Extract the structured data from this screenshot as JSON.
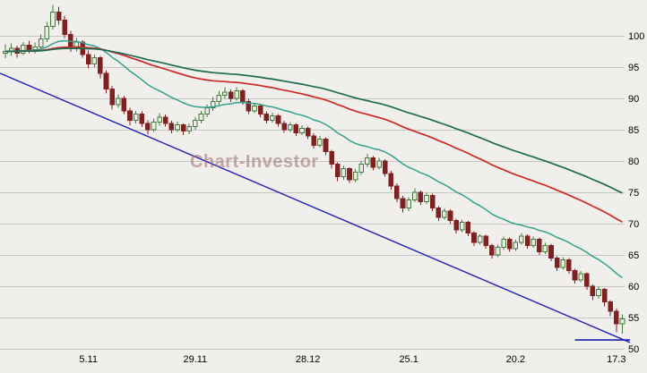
{
  "chart_data": {
    "type": "candlestick",
    "watermark": "Chart-Investor",
    "y_axis": {
      "top_price": 105.7,
      "bottom_price": 49.7,
      "ticks": [
        100,
        95,
        90,
        85,
        80,
        75,
        70,
        65,
        60,
        55,
        50
      ]
    },
    "x_labels": [
      {
        "index": 14,
        "text": "5.11"
      },
      {
        "index": 32,
        "text": "29.11"
      },
      {
        "index": 51,
        "text": "28.12"
      },
      {
        "index": 68,
        "text": "25.1"
      },
      {
        "index": 86,
        "text": "20.2"
      },
      {
        "index": 103,
        "text": "17.3"
      }
    ],
    "candles": [
      [
        97.2,
        98.6,
        96.4,
        97.5
      ],
      [
        97.5,
        98.8,
        96.8,
        98.0
      ],
      [
        98.0,
        98.4,
        96.5,
        97.2
      ],
      [
        97.2,
        99.0,
        96.9,
        98.5
      ],
      [
        98.5,
        99.2,
        97.2,
        97.8
      ],
      [
        97.8,
        98.9,
        97.1,
        98.2
      ],
      [
        98.2,
        100.2,
        97.8,
        99.5
      ],
      [
        99.5,
        102.2,
        99.0,
        101.5
      ],
      [
        101.5,
        104.9,
        101.0,
        103.8
      ],
      [
        103.8,
        104.6,
        101.8,
        102.5
      ],
      [
        102.5,
        103.2,
        99.6,
        100.2
      ],
      [
        100.2,
        100.8,
        97.4,
        98.0
      ],
      [
        98.0,
        99.6,
        97.5,
        99.0
      ],
      [
        99.0,
        99.3,
        96.5,
        97.0
      ],
      [
        97.0,
        97.6,
        94.8,
        95.5
      ],
      [
        95.5,
        97.0,
        95.0,
        96.5
      ],
      [
        96.5,
        96.8,
        93.2,
        94.0
      ],
      [
        94.0,
        94.5,
        90.8,
        91.5
      ],
      [
        91.5,
        92.0,
        88.2,
        89.0
      ],
      [
        89.0,
        90.6,
        88.5,
        90.0
      ],
      [
        90.0,
        90.4,
        87.5,
        88.0
      ],
      [
        88.0,
        88.5,
        85.7,
        86.5
      ],
      [
        86.5,
        88.0,
        86.0,
        87.5
      ],
      [
        87.5,
        87.9,
        85.4,
        86.0
      ],
      [
        86.0,
        86.5,
        84.2,
        85.0
      ],
      [
        85.0,
        86.8,
        84.6,
        86.2
      ],
      [
        86.2,
        87.6,
        85.6,
        87.0
      ],
      [
        87.0,
        87.4,
        85.5,
        86.0
      ],
      [
        86.0,
        86.4,
        84.4,
        85.0
      ],
      [
        85.0,
        86.3,
        84.6,
        85.8
      ],
      [
        85.8,
        86.0,
        84.1,
        84.8
      ],
      [
        84.8,
        86.0,
        84.3,
        85.5
      ],
      [
        85.5,
        87.0,
        85.0,
        86.5
      ],
      [
        86.5,
        88.0,
        86.0,
        87.5
      ],
      [
        87.5,
        89.0,
        87.0,
        88.5
      ],
      [
        88.5,
        90.2,
        88.0,
        89.5
      ],
      [
        89.5,
        91.2,
        89.0,
        90.5
      ],
      [
        90.5,
        91.8,
        90.0,
        91.0
      ],
      [
        91.0,
        91.4,
        89.4,
        90.0
      ],
      [
        90.0,
        91.8,
        89.6,
        91.2
      ],
      [
        91.2,
        91.5,
        89.0,
        89.5
      ],
      [
        89.5,
        89.9,
        87.5,
        88.0
      ],
      [
        88.0,
        89.3,
        87.6,
        88.8
      ],
      [
        88.8,
        89.0,
        87.0,
        87.5
      ],
      [
        87.5,
        87.9,
        86.0,
        86.5
      ],
      [
        86.5,
        87.7,
        86.1,
        87.2
      ],
      [
        87.2,
        87.5,
        85.5,
        86.0
      ],
      [
        86.0,
        86.4,
        84.5,
        85.0
      ],
      [
        85.0,
        86.2,
        84.6,
        85.8
      ],
      [
        85.8,
        86.0,
        84.0,
        84.5
      ],
      [
        84.5,
        85.7,
        84.1,
        85.2
      ],
      [
        85.2,
        85.5,
        83.5,
        84.0
      ],
      [
        84.0,
        84.4,
        82.0,
        82.5
      ],
      [
        82.5,
        84.0,
        82.1,
        83.5
      ],
      [
        83.5,
        83.8,
        80.9,
        81.5
      ],
      [
        81.5,
        81.8,
        78.8,
        79.5
      ],
      [
        79.5,
        79.8,
        76.8,
        77.5
      ],
      [
        77.5,
        79.2,
        77.0,
        78.8
      ],
      [
        78.8,
        79.0,
        76.5,
        77.0
      ],
      [
        77.0,
        78.7,
        76.6,
        78.2
      ],
      [
        78.2,
        80.0,
        77.8,
        79.5
      ],
      [
        79.5,
        81.1,
        79.0,
        80.5
      ],
      [
        80.5,
        80.8,
        78.5,
        79.0
      ],
      [
        79.0,
        80.5,
        78.6,
        80.0
      ],
      [
        80.0,
        80.3,
        77.5,
        78.0
      ],
      [
        78.0,
        78.4,
        75.4,
        76.0
      ],
      [
        76.0,
        76.4,
        73.4,
        74.0
      ],
      [
        74.0,
        74.4,
        71.8,
        72.5
      ],
      [
        72.5,
        74.2,
        72.0,
        73.8
      ],
      [
        73.8,
        75.6,
        73.4,
        75.0
      ],
      [
        75.0,
        75.3,
        73.0,
        73.5
      ],
      [
        73.5,
        74.9,
        73.1,
        74.5
      ],
      [
        74.5,
        74.8,
        72.0,
        72.5
      ],
      [
        72.5,
        72.8,
        70.4,
        71.0
      ],
      [
        71.0,
        72.4,
        70.6,
        72.0
      ],
      [
        72.0,
        72.3,
        70.0,
        70.5
      ],
      [
        70.5,
        70.8,
        68.4,
        69.0
      ],
      [
        69.0,
        70.6,
        68.6,
        70.2
      ],
      [
        70.2,
        70.4,
        68.0,
        68.5
      ],
      [
        68.5,
        68.8,
        66.4,
        67.0
      ],
      [
        67.0,
        68.3,
        66.6,
        68.0
      ],
      [
        68.0,
        68.2,
        66.0,
        66.5
      ],
      [
        66.5,
        66.8,
        64.4,
        65.0
      ],
      [
        65.0,
        66.6,
        64.6,
        66.2
      ],
      [
        66.2,
        67.9,
        65.8,
        67.5
      ],
      [
        67.5,
        67.8,
        65.5,
        66.0
      ],
      [
        66.0,
        67.4,
        65.6,
        67.0
      ],
      [
        67.0,
        68.5,
        66.6,
        68.0
      ],
      [
        68.0,
        68.3,
        66.0,
        66.5
      ],
      [
        66.5,
        67.9,
        66.1,
        67.5
      ],
      [
        67.5,
        67.8,
        65.0,
        65.5
      ],
      [
        65.5,
        66.9,
        65.1,
        66.5
      ],
      [
        66.5,
        66.8,
        64.0,
        64.5
      ],
      [
        64.5,
        64.8,
        62.4,
        63.0
      ],
      [
        63.0,
        64.6,
        62.6,
        64.2
      ],
      [
        64.2,
        64.5,
        62.0,
        62.5
      ],
      [
        62.5,
        62.8,
        60.4,
        61.0
      ],
      [
        61.0,
        62.4,
        60.6,
        62.0
      ],
      [
        62.0,
        62.2,
        59.4,
        60.0
      ],
      [
        60.0,
        60.3,
        57.8,
        58.5
      ],
      [
        58.5,
        59.9,
        58.0,
        59.5
      ],
      [
        59.5,
        59.7,
        56.8,
        57.5
      ],
      [
        57.5,
        57.8,
        55.2,
        56.0
      ],
      [
        56.0,
        56.4,
        52.6,
        54.0
      ],
      [
        54.0,
        55.5,
        52.4,
        54.8
      ]
    ],
    "indicators": [
      {
        "name": "ema-fast",
        "period": 20,
        "color": "#35a08d",
        "width": 1.5
      },
      {
        "name": "ema-mid",
        "period": 60,
        "color": "#cc2a22",
        "width": 1.7
      },
      {
        "name": "ema-slow",
        "period": 90,
        "color": "#1d6b52",
        "width": 1.7
      }
    ],
    "trendlines": [
      {
        "name": "descending-trendline",
        "from": {
          "index": -1,
          "price": 94.0
        },
        "to": {
          "index": 105.5,
          "price": 51.0
        },
        "color": "#1e1eb4",
        "width": 1.4
      },
      {
        "name": "support-line",
        "from": {
          "index": 96,
          "price": 51.4
        },
        "to": {
          "index": 105.5,
          "price": 51.4
        },
        "color": "#1e1eb4",
        "width": 1.6
      }
    ],
    "colors": {
      "background": "#f0efec",
      "grid": "#c6c6c3",
      "up": "#447a3c",
      "up_fill": "#e9ece1",
      "down": "#7e2120",
      "text": "#000000"
    }
  }
}
